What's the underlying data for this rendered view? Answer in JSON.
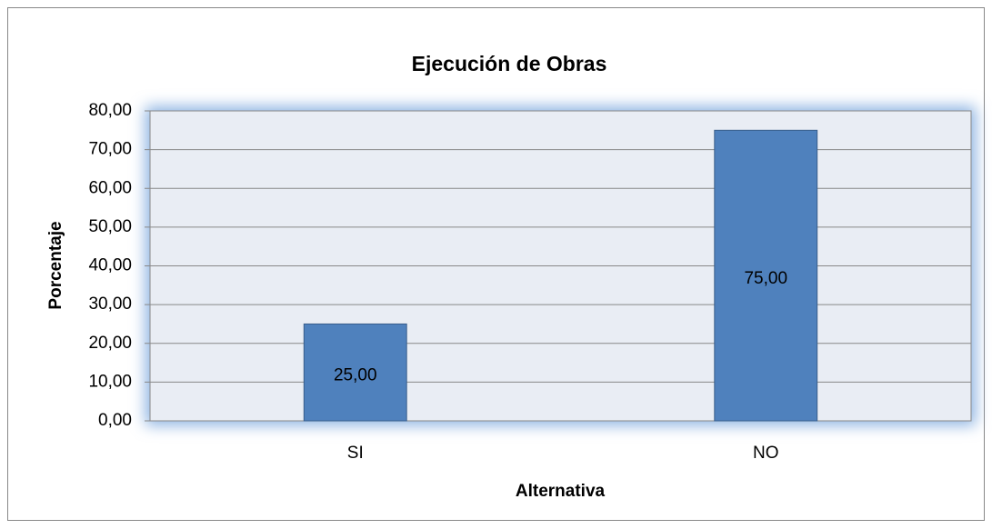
{
  "chart_data": {
    "type": "bar",
    "title": "Ejecución de  Obras",
    "x_label": "Alternativa",
    "y_label": "Porcentaje",
    "categories": [
      "SI",
      "NO"
    ],
    "values": [
      25,
      75
    ],
    "value_labels": [
      "25,00",
      "75,00"
    ],
    "color": "#4f81bd",
    "ylim": [
      0,
      80
    ],
    "yticks": [
      {
        "value": 0,
        "label": "0,00"
      },
      {
        "value": 10,
        "label": "10,00"
      },
      {
        "value": 20,
        "label": "20,00"
      },
      {
        "value": 30,
        "label": "30,00"
      },
      {
        "value": 40,
        "label": "40,00"
      },
      {
        "value": 50,
        "label": "50,00"
      },
      {
        "value": 60,
        "label": "60,00"
      },
      {
        "value": 70,
        "label": "70,00"
      },
      {
        "value": 80,
        "label": "80,00"
      }
    ],
    "grid": true
  }
}
